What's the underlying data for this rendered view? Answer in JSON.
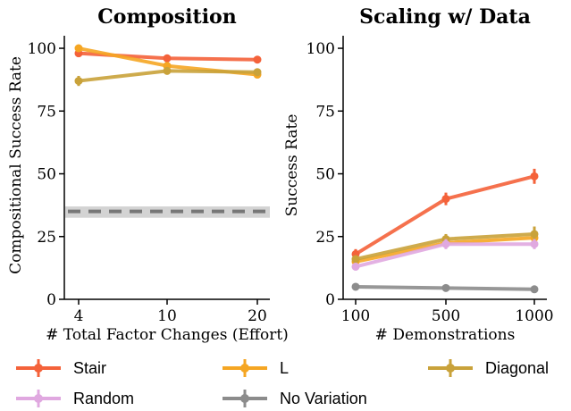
{
  "colors": {
    "Stair": "#f4623a",
    "L": "#f5a623",
    "Diagonal": "#c9a23a",
    "Random": "#e0a8e0",
    "No Variation": "#8c8c8c",
    "baseline": "#777777",
    "baseline_band": "#d3d3d3"
  },
  "legend": [
    "Stair",
    "L",
    "Diagonal",
    "Random",
    "No Variation"
  ],
  "chart_data": [
    {
      "type": "line",
      "title": "Composition",
      "xlabel": "# Total Factor Changes (Effort)",
      "ylabel": "Compositional Success Rate",
      "categories": [
        "4",
        "10",
        "20"
      ],
      "ylim": [
        0,
        105
      ],
      "yticks": [
        0,
        25,
        50,
        75,
        100
      ],
      "series": [
        {
          "name": "Stair",
          "values": [
            98,
            96,
            95.5
          ],
          "err": [
            1,
            1,
            1
          ]
        },
        {
          "name": "L",
          "values": [
            100,
            93,
            89.5
          ],
          "err": [
            1,
            1,
            1.2
          ]
        },
        {
          "name": "Diagonal",
          "values": [
            87,
            91,
            90.5
          ],
          "err": [
            2,
            1.5,
            1.5
          ]
        }
      ],
      "baseline": {
        "value": 35,
        "band": [
          32.5,
          37
        ]
      }
    },
    {
      "type": "line",
      "title": "Scaling w/ Data",
      "xlabel": "# Demonstrations",
      "ylabel": "Success Rate",
      "categories": [
        "100",
        "500",
        "1000"
      ],
      "ylim": [
        0,
        105
      ],
      "yticks": [
        0,
        25,
        50,
        75,
        100
      ],
      "series": [
        {
          "name": "Stair",
          "values": [
            18,
            40,
            49
          ],
          "err": [
            2,
            2.5,
            3
          ]
        },
        {
          "name": "L",
          "values": [
            15,
            22.5,
            24.5
          ],
          "err": [
            1.5,
            2,
            2
          ]
        },
        {
          "name": "Diagonal",
          "values": [
            16,
            24,
            26
          ],
          "err": [
            1.5,
            2,
            3
          ]
        },
        {
          "name": "Random",
          "values": [
            13,
            22,
            22
          ],
          "err": [
            1.5,
            2,
            2
          ]
        },
        {
          "name": "No Variation",
          "values": [
            5,
            4.5,
            4
          ],
          "err": [
            1,
            1,
            0.8
          ]
        }
      ]
    }
  ]
}
